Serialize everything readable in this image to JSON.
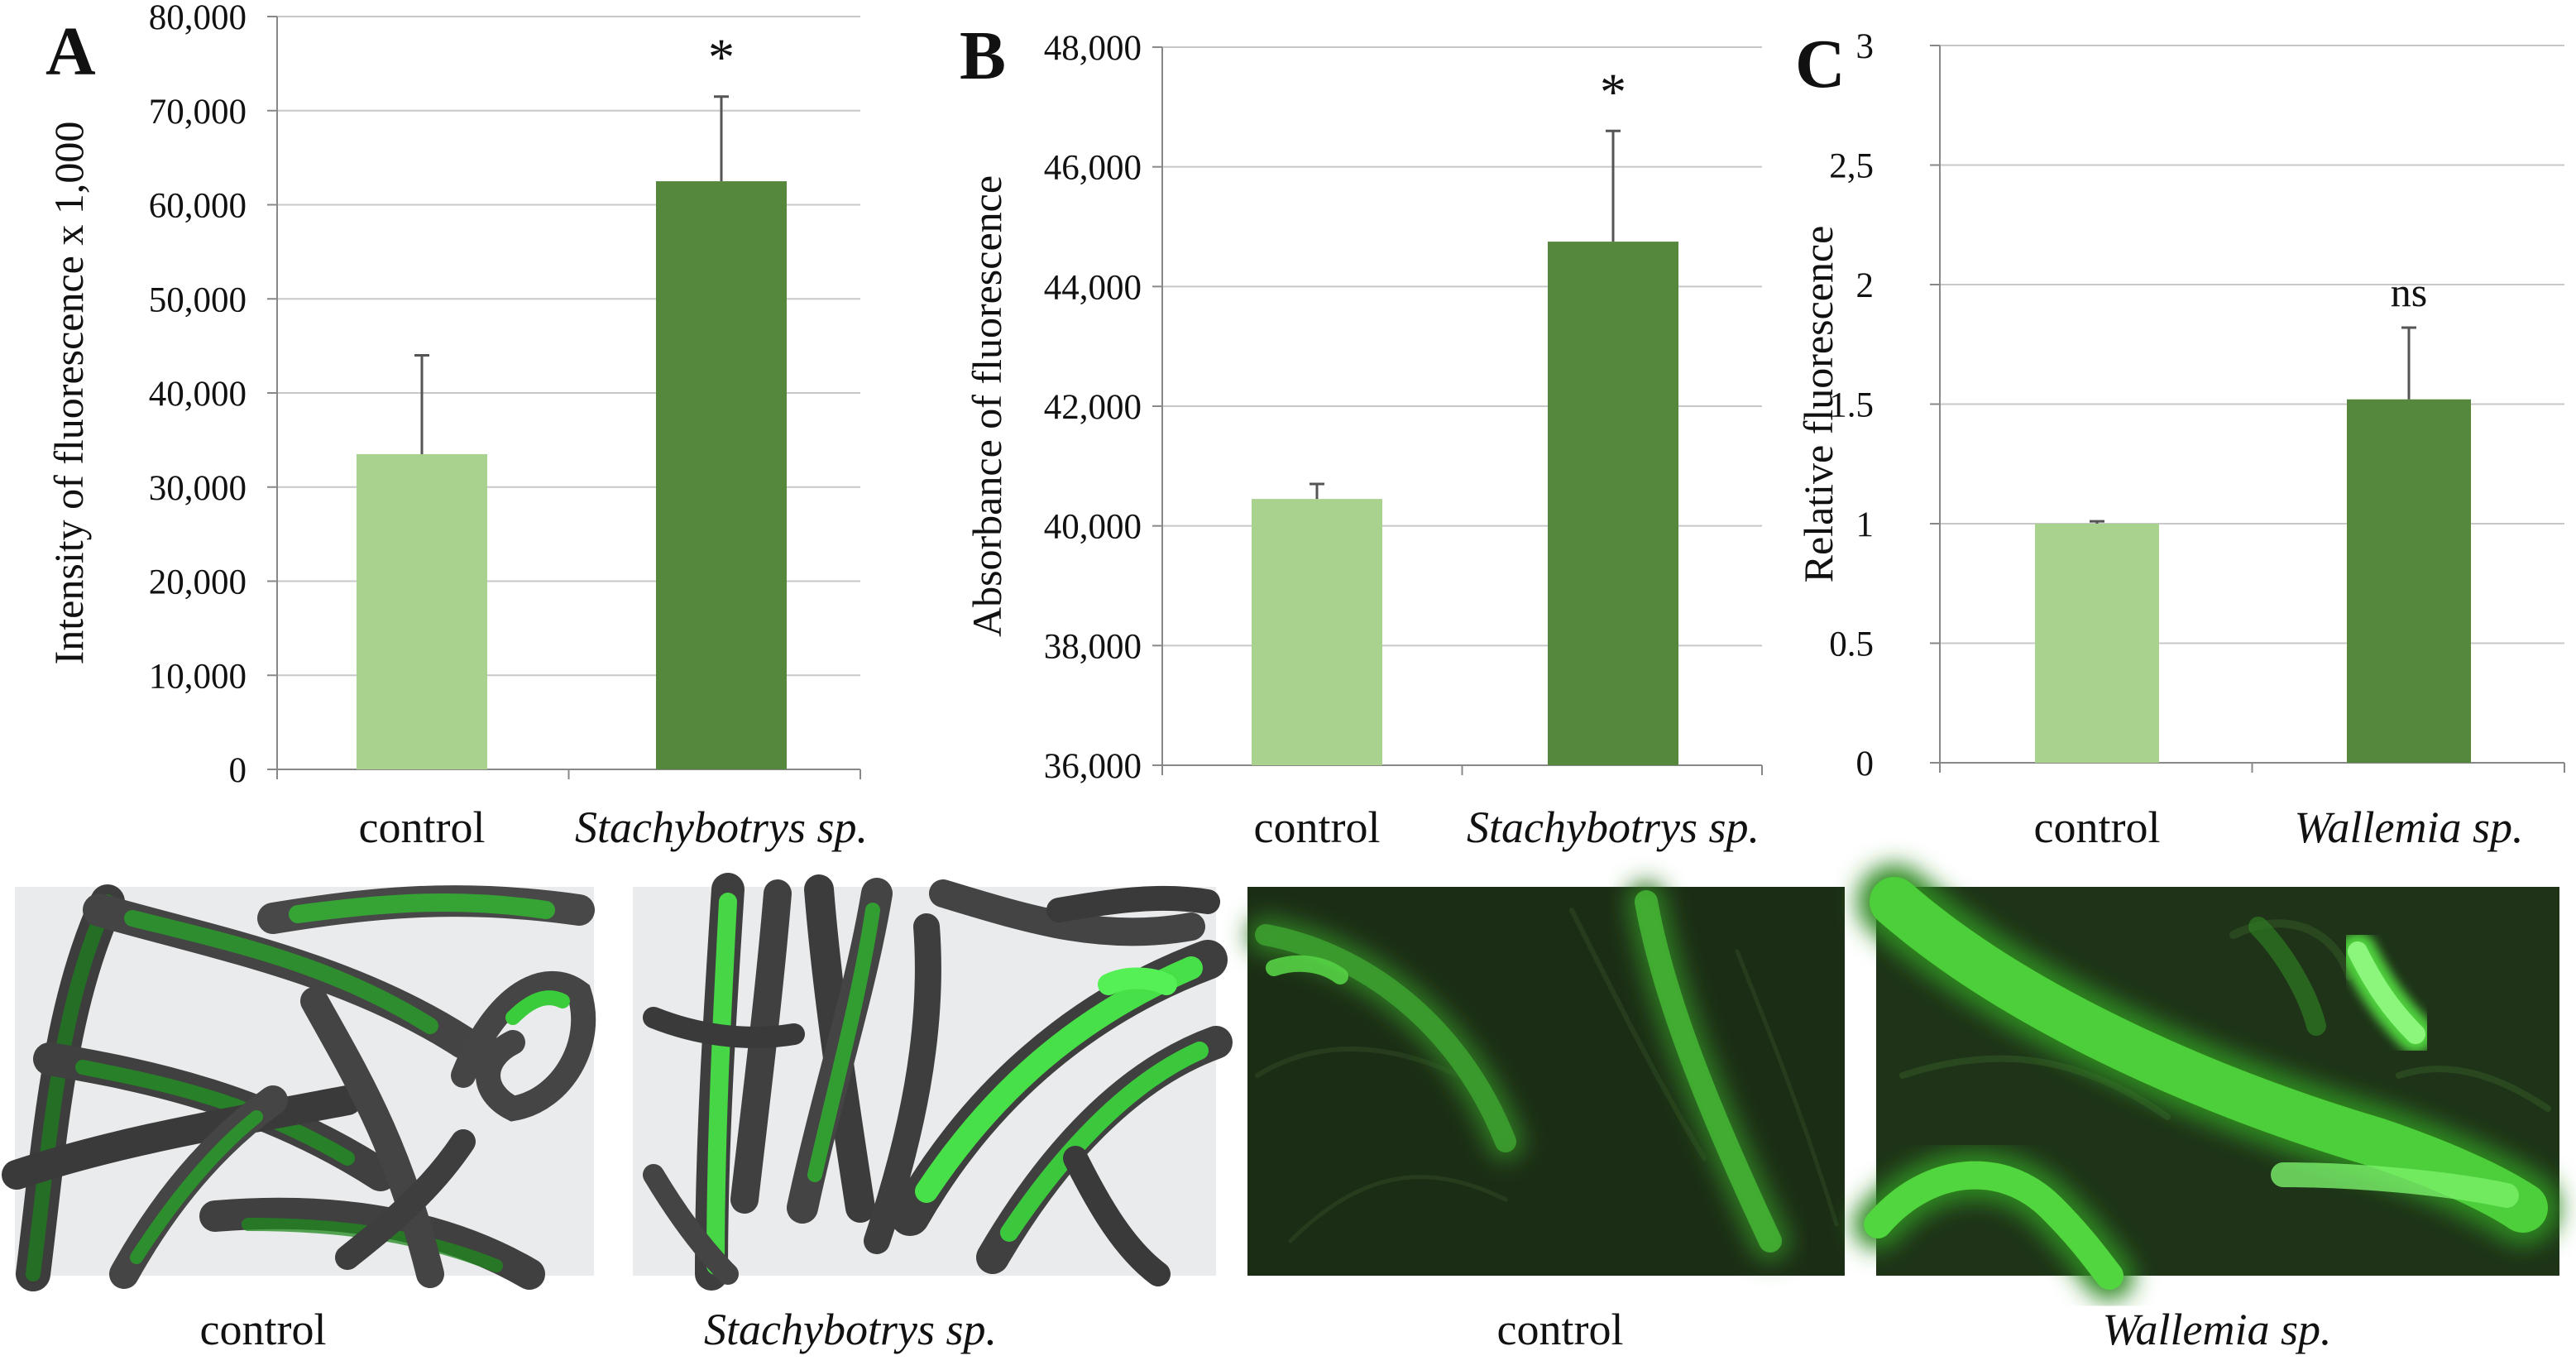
{
  "colors": {
    "control": "#a8d28e",
    "treated": "#55883c",
    "grid": "#c8c8c8",
    "axis": "#888888",
    "error_bar": "#555555",
    "bright_field_bg": "#e9ebec",
    "fluor_bg": "#1a2b14",
    "gfp": "#39d339"
  },
  "chart_data": [
    {
      "type": "bar",
      "panel_letter": "A",
      "ylabel": "Intensity of fluorescence x 1,000",
      "categories": [
        "control",
        "Stachybotrys sp."
      ],
      "values": [
        33500,
        62500
      ],
      "error_plus": [
        10500,
        9000
      ],
      "significance": "*",
      "ylim": [
        0,
        80000
      ],
      "yticks": [
        "0",
        "10,000",
        "20,000",
        "30,000",
        "40,000",
        "50,000",
        "60,000",
        "70,000",
        "80,000"
      ],
      "grid": true
    },
    {
      "type": "bar",
      "panel_letter": "B",
      "ylabel": "Absorbance of fluorescence",
      "categories": [
        "control",
        "Stachybotrys sp."
      ],
      "values": [
        40450,
        44750
      ],
      "error_plus": [
        250,
        1850
      ],
      "significance": "*",
      "ylim": [
        36000,
        48000
      ],
      "yticks": [
        "36,000",
        "38,000",
        "40,000",
        "42,000",
        "44,000",
        "46,000",
        "48,000"
      ],
      "grid": true
    },
    {
      "type": "bar",
      "panel_letter": "C",
      "ylabel": "Relative fluorescence",
      "categories": [
        "control",
        "Wallemia sp."
      ],
      "values": [
        1.0,
        1.52
      ],
      "error_plus": [
        0.01,
        0.3
      ],
      "significance": "ns",
      "ylim": [
        0,
        3
      ],
      "yticks": [
        "0",
        "0.5",
        "1",
        "1.5",
        "2",
        "2,5",
        "3"
      ],
      "grid": true
    }
  ],
  "micrographs": [
    {
      "caption": "control",
      "style": "bright-field"
    },
    {
      "caption": "Stachybotrys sp.",
      "style": "bright-field"
    },
    {
      "caption": "control",
      "style": "fluorescence"
    },
    {
      "caption": "Wallemia sp.",
      "style": "fluorescence"
    }
  ]
}
